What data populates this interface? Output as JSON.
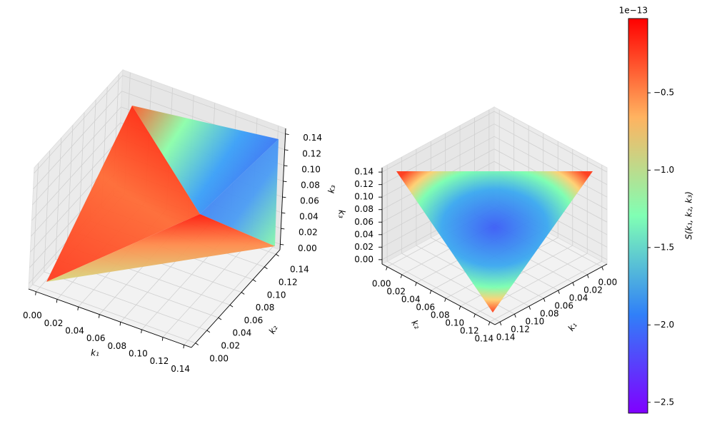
{
  "chart_data": [
    {
      "type": "scatter3d",
      "xlabel": "k₁",
      "ylabel": "k₂",
      "zlabel": "k₃",
      "xlim": [
        -0.007,
        0.147
      ],
      "ylim": [
        -0.007,
        0.147
      ],
      "zlim": [
        -0.007,
        0.147
      ],
      "xticks": [
        {
          "value": 0,
          "label": "0.00"
        },
        {
          "value": 0.02,
          "label": "0.02"
        },
        {
          "value": 0.04,
          "label": "0.04"
        },
        {
          "value": 0.06,
          "label": "0.06"
        },
        {
          "value": 0.08,
          "label": "0.08"
        },
        {
          "value": 0.1,
          "label": "0.10"
        },
        {
          "value": 0.12,
          "label": "0.12"
        },
        {
          "value": 0.14,
          "label": "0.14"
        }
      ],
      "yticks": [
        {
          "value": 0,
          "label": "0.00"
        },
        {
          "value": 0.02,
          "label": "0.02"
        },
        {
          "value": 0.04,
          "label": "0.04"
        },
        {
          "value": 0.06,
          "label": "0.06"
        },
        {
          "value": 0.08,
          "label": "0.08"
        },
        {
          "value": 0.1,
          "label": "0.10"
        },
        {
          "value": 0.12,
          "label": "0.12"
        },
        {
          "value": 0.14,
          "label": "0.14"
        }
      ],
      "zticks": [
        {
          "value": 0,
          "label": "0.00"
        },
        {
          "value": 0.02,
          "label": "0.02"
        },
        {
          "value": 0.04,
          "label": "0.04"
        },
        {
          "value": 0.06,
          "label": "0.06"
        },
        {
          "value": 0.08,
          "label": "0.08"
        },
        {
          "value": 0.1,
          "label": "0.10"
        },
        {
          "value": 0.12,
          "label": "0.12"
        },
        {
          "value": 0.14,
          "label": "0.14"
        }
      ],
      "grid": true
    },
    {
      "type": "scatter3d",
      "xlabel": "k₁",
      "ylabel": "k₂",
      "zlabel": "k₃",
      "xlim": [
        -0.007,
        0.147
      ],
      "ylim": [
        -0.007,
        0.147
      ],
      "zlim": [
        -0.007,
        0.147
      ],
      "xticks": [
        {
          "value": 0,
          "label": "0.00"
        },
        {
          "value": 0.02,
          "label": "0.02"
        },
        {
          "value": 0.04,
          "label": "0.04"
        },
        {
          "value": 0.06,
          "label": "0.06"
        },
        {
          "value": 0.08,
          "label": "0.08"
        },
        {
          "value": 0.1,
          "label": "0.10"
        },
        {
          "value": 0.12,
          "label": "0.12"
        },
        {
          "value": 0.14,
          "label": "0.14"
        }
      ],
      "yticks": [
        {
          "value": 0,
          "label": "0.00"
        },
        {
          "value": 0.02,
          "label": "0.02"
        },
        {
          "value": 0.04,
          "label": "0.04"
        },
        {
          "value": 0.06,
          "label": "0.06"
        },
        {
          "value": 0.08,
          "label": "0.08"
        },
        {
          "value": 0.1,
          "label": "0.10"
        },
        {
          "value": 0.12,
          "label": "0.12"
        },
        {
          "value": 0.14,
          "label": "0.14"
        }
      ],
      "zticks": [
        {
          "value": 0,
          "label": "0.00"
        },
        {
          "value": 0.02,
          "label": "0.02"
        },
        {
          "value": 0.04,
          "label": "0.04"
        },
        {
          "value": 0.06,
          "label": "0.06"
        },
        {
          "value": 0.08,
          "label": "0.08"
        },
        {
          "value": 0.1,
          "label": "0.10"
        },
        {
          "value": 0.12,
          "label": "0.12"
        },
        {
          "value": 0.14,
          "label": "0.14"
        }
      ],
      "grid": true
    }
  ],
  "colorbar": {
    "label": "S(k₁, k₂, k₃)",
    "offset_text": "1e−13",
    "colormap": "rainbow",
    "lim": [
      -2.57,
      -0.02
    ],
    "ticks": [
      {
        "value": -0.5,
        "label": "−0.5"
      },
      {
        "value": -1.0,
        "label": "−1.0"
      },
      {
        "value": -1.5,
        "label": "−1.5"
      },
      {
        "value": -2.0,
        "label": "−2.0"
      },
      {
        "value": -2.5,
        "label": "−2.5"
      }
    ]
  }
}
